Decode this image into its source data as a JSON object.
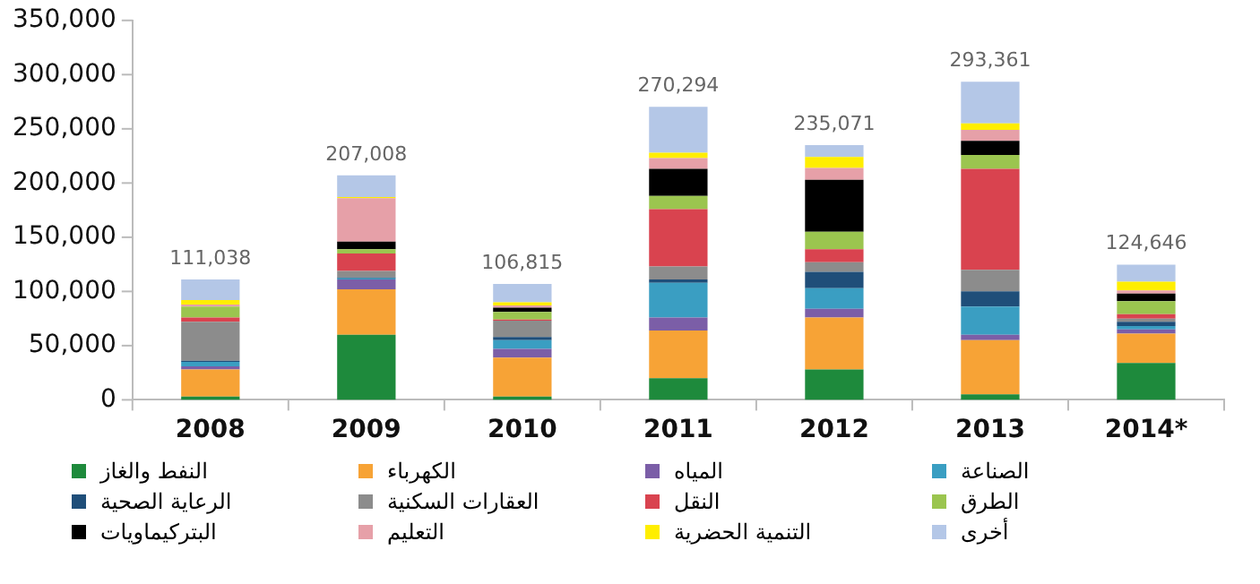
{
  "chart_data": {
    "type": "bar",
    "stacked": true,
    "categories": [
      "2008",
      "2009",
      "2010",
      "2011",
      "2012",
      "2013",
      "2014*"
    ],
    "ylim": [
      0,
      350000
    ],
    "yticks": [
      {
        "value": 0,
        "label": "0"
      },
      {
        "value": 50000,
        "label": "50,000"
      },
      {
        "value": 100000,
        "label": "100,000"
      },
      {
        "value": 150000,
        "label": "150,000"
      },
      {
        "value": 200000,
        "label": "200,000"
      },
      {
        "value": 250000,
        "label": "250,000"
      },
      {
        "value": 300000,
        "label": "300,000"
      },
      {
        "value": 350000,
        "label": "350,000"
      }
    ],
    "grid": false,
    "legend": "bottom",
    "totals": [
      "111,038",
      "207,008",
      "106,815",
      "270,294",
      "235,071",
      "293,361",
      "124,646"
    ],
    "series": [
      {
        "name": "النفط والغاز",
        "color": "#1e8a3c",
        "values": [
          3000,
          60000,
          3000,
          20000,
          28000,
          5000,
          34000
        ]
      },
      {
        "name": "الكهرباء",
        "color": "#f7a336",
        "values": [
          25000,
          42000,
          36000,
          44000,
          48000,
          50000,
          27000
        ]
      },
      {
        "name": "المياه",
        "color": "#7b5ea7",
        "values": [
          3000,
          9000,
          8000,
          12000,
          8000,
          5000,
          4000
        ]
      },
      {
        "name": "الصناعة",
        "color": "#3a9ec2",
        "values": [
          4000,
          1000,
          8000,
          32000,
          19000,
          26000,
          3000
        ]
      },
      {
        "name": "الرعاية الصحية",
        "color": "#1f4e79",
        "values": [
          1000,
          1000,
          3000,
          3000,
          15000,
          14000,
          4000
        ]
      },
      {
        "name": "العقارات السكنية",
        "color": "#8c8c8c",
        "values": [
          36000,
          6000,
          15000,
          12000,
          9000,
          20000,
          3000
        ]
      },
      {
        "name": "النقل",
        "color": "#d9434f",
        "values": [
          4000,
          16000,
          1000,
          53000,
          12000,
          93000,
          4000
        ]
      },
      {
        "name": "الطرق",
        "color": "#9bc54f",
        "values": [
          10000,
          4000,
          7000,
          12000,
          16000,
          13000,
          12000
        ]
      },
      {
        "name": "البتركيماويات",
        "color": "#000000",
        "values": [
          0,
          7000,
          4000,
          25000,
          48000,
          13000,
          7000
        ]
      },
      {
        "name": "التعليم",
        "color": "#e6a0a8",
        "values": [
          2000,
          40000,
          2000,
          10000,
          11000,
          10000,
          3000
        ]
      },
      {
        "name": "التنمية الحضرية",
        "color": "#ffee00",
        "values": [
          4000,
          1000,
          3000,
          5000,
          10000,
          6000,
          8000
        ]
      },
      {
        "name": "أخرى",
        "color": "#b4c7e7",
        "values": [
          19038,
          20008,
          16815,
          42294,
          11071,
          38361,
          15646
        ]
      }
    ]
  }
}
